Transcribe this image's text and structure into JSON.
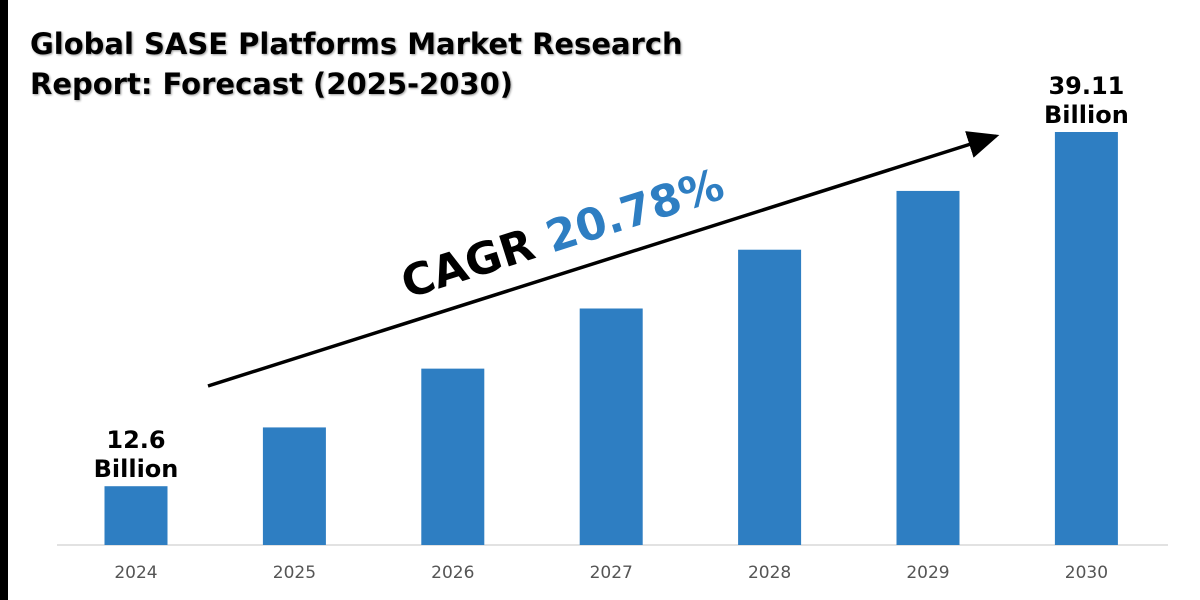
{
  "title_line1": "Global SASE Platforms Market Research",
  "title_line2": "Report: Forecast (2025-2030)",
  "annotation": {
    "prefix": "CAGR",
    "value": "20.78%",
    "value_color": "#2e7ec2"
  },
  "chart_data": {
    "type": "bar",
    "title": "Global SASE Platforms Market Research Report: Forecast (2025-2030)",
    "categories": [
      "2024",
      "2025",
      "2026",
      "2027",
      "2028",
      "2029",
      "2030"
    ],
    "values": [
      12.6,
      17.0,
      21.4,
      25.9,
      30.3,
      34.7,
      39.11
    ],
    "unit": "Billion",
    "data_labels": [
      {
        "index": 0,
        "line1": "12.6",
        "line2": "Billion"
      },
      {
        "index": 6,
        "line1": "39.11",
        "line2": "Billion"
      }
    ],
    "ylim": [
      8.2,
      40
    ],
    "bar_color": "#2e7ec2",
    "grid": false,
    "legend": "none",
    "xlabel": "",
    "ylabel": ""
  }
}
